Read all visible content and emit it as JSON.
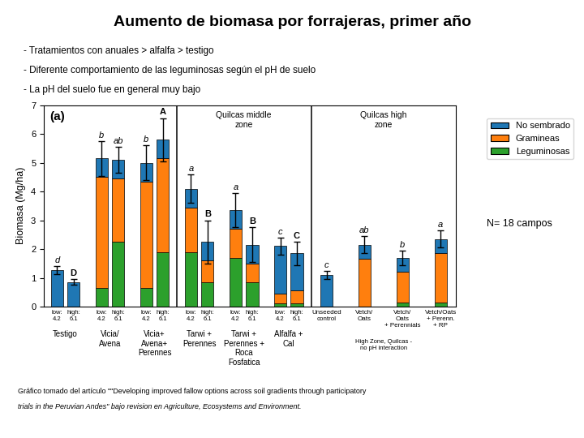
{
  "chart_data": {
    "type": "bar",
    "stacked": true,
    "title": "Aumento de biomasa por forrajeras, primer año",
    "bullet_points": [
      "- Tratamientos con anuales > alfalfa > testigo",
      "- Diferente comportamiento de las leguminosas según el pH de suelo",
      "- La pH del suelo fue en general muy bajo"
    ],
    "ylabel": "Biomasa (Mg/ha)",
    "ylim": [
      0,
      7
    ],
    "yticks": [
      0,
      1,
      2,
      3,
      4,
      5,
      6,
      7
    ],
    "categories": [
      "low:\n4.2",
      "high:\n6.1",
      "low:\n4.2",
      "high:\n6.1",
      "low:\n4.2",
      "high:\n6.1",
      "low:\n4.2",
      "high:\n6.1",
      "low:\n4.2",
      "high:\n6.1",
      "low:\n4.2",
      "high:\n6.1",
      "Unseeded\ncontrol",
      "Vetch/\nOats",
      "Vetch/\nOats\n+ Perennials",
      "Vetch/Oats\n+ Perenn.\n+ RP"
    ],
    "series": [
      {
        "name": "No sembrado",
        "values": [
          1.27,
          0.85,
          0.65,
          0.65,
          0.65,
          0.65,
          0.65,
          0.65,
          0.65,
          0.65,
          1.65,
          1.3,
          1.1,
          0.5,
          0.5,
          0.5
        ]
      },
      {
        "name": "Gramineas",
        "values": [
          0.0,
          0.0,
          3.85,
          2.2,
          3.7,
          3.25,
          1.55,
          0.75,
          1.0,
          0.65,
          0.35,
          0.45,
          0.0,
          1.65,
          1.05,
          1.7
        ]
      },
      {
        "name": "Leguminosas",
        "values": [
          0.0,
          0.0,
          0.65,
          2.25,
          0.65,
          1.9,
          1.9,
          0.85,
          1.7,
          0.85,
          0.1,
          0.1,
          0.0,
          0.0,
          0.15,
          0.15
        ]
      }
    ],
    "errors": [
      0.15,
      0.1,
      0.6,
      0.45,
      0.6,
      0.75,
      0.5,
      0.75,
      0.6,
      0.6,
      0.3,
      0.4,
      0.15,
      0.3,
      0.25,
      0.3
    ],
    "bar_labels": [
      "d",
      "D",
      "b",
      "ab",
      "b",
      "A",
      "a",
      "B",
      "a",
      "B",
      "c",
      "C",
      "c",
      "ab",
      "b",
      "a"
    ],
    "groups": [
      {
        "label": "Testigo",
        "size": 2
      },
      {
        "label": "Vicia/\nAvena",
        "size": 2
      },
      {
        "label": "Vicia+\nAvena+\nPerennes",
        "size": 2
      },
      {
        "label": "Tarwi +\nPerennes",
        "size": 2
      },
      {
        "label": "Tarwi +\nPerennes +\nRoca\nFosfatica",
        "size": 2
      },
      {
        "label": "Alfalfa +\nCal",
        "size": 2
      }
    ],
    "zones": [
      {
        "label": "Quilcas middle\nzone",
        "start": 6,
        "end": 11
      },
      {
        "label": "Quilcas high\nzone",
        "start": 12,
        "end": 15,
        "note": "High Zone, Quilcas -\nno pH interaction"
      }
    ],
    "panel_label": "(a)",
    "legend": "upper right",
    "note": "N= 18 campos",
    "footnotes": [
      "Gráfico tomado del artículo \"\"Developing improved fallow options across soil gradients through participatory",
      "trials in the Peruvian Andes\" bajo revision en Agriculture, Ecosystems and Environment."
    ]
  }
}
